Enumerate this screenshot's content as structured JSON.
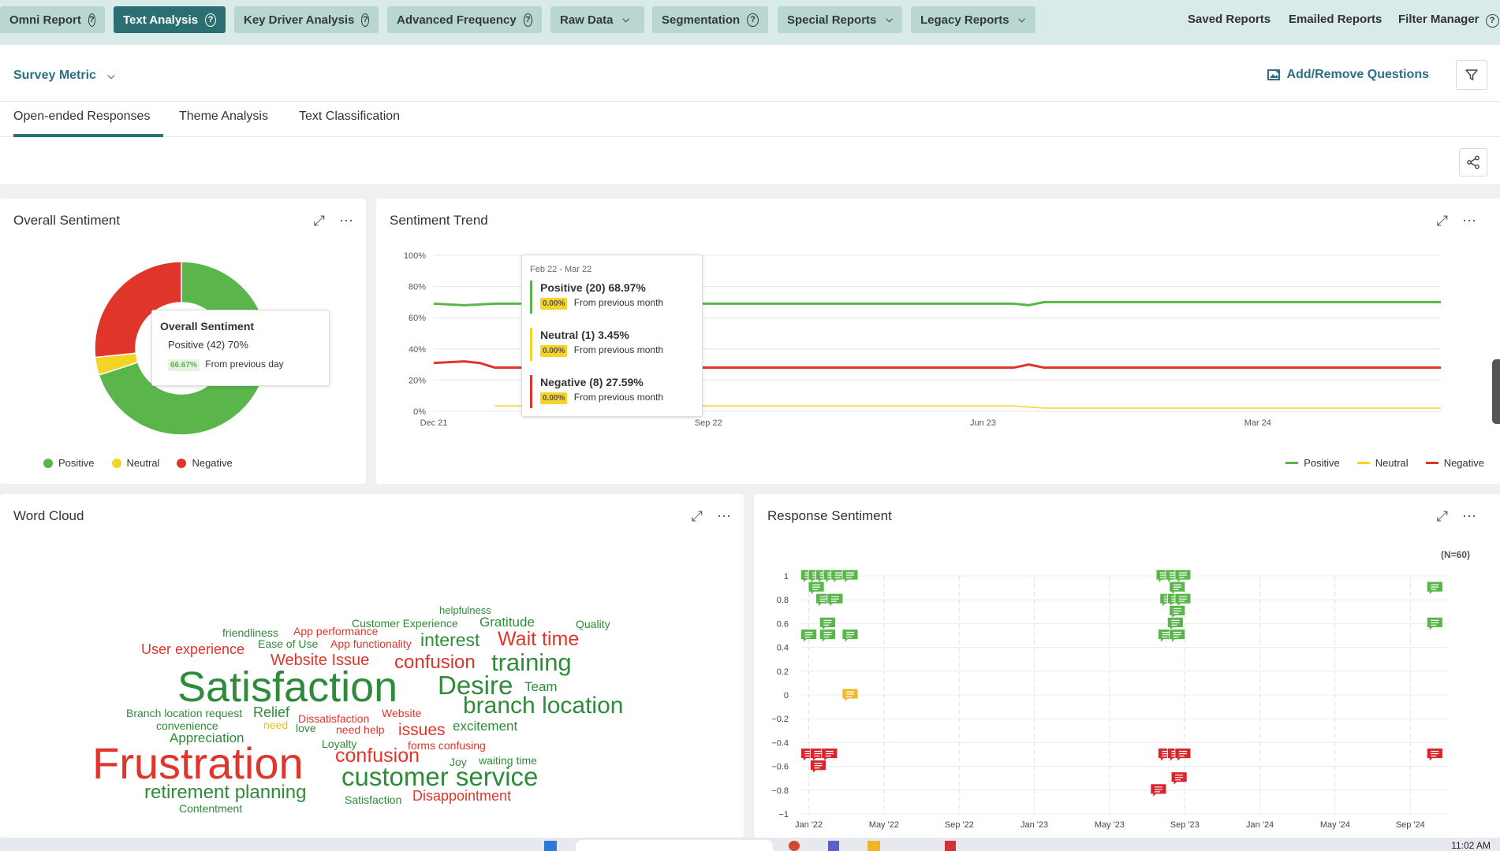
{
  "nav": {
    "tabs": [
      {
        "label": "Omni Report",
        "suffix": "help"
      },
      {
        "label": "Text Analysis",
        "suffix": "help",
        "active": true
      },
      {
        "label": "Key Driver Analysis",
        "suffix": "help"
      },
      {
        "label": "Advanced Frequency",
        "suffix": "help"
      },
      {
        "label": "Raw Data",
        "suffix": "chevron"
      },
      {
        "label": "Segmentation",
        "suffix": "help"
      },
      {
        "label": "Special Reports",
        "suffix": "chevron"
      },
      {
        "label": "Legacy Reports",
        "suffix": "chevron"
      }
    ],
    "links": [
      "Saved Reports",
      "Emailed Reports",
      "Filter Manager"
    ]
  },
  "header": {
    "survey_metric": "Survey Metric",
    "add_remove_questions": "Add/Remove Questions"
  },
  "subtabs": [
    "Open-ended Responses",
    "Theme Analysis",
    "Text Classification"
  ],
  "colors": {
    "positive": "#5ab54b",
    "neutral": "#f5d327",
    "negative": "#e0352b",
    "accent": "#2b6f73",
    "link": "#2e6f86"
  },
  "overall": {
    "title": "Overall Sentiment",
    "tooltip": {
      "title": "Overall Sentiment",
      "line": "Positive (42) 70%",
      "badge": "66.67%",
      "note": "From previous day"
    },
    "legend": [
      "Positive",
      "Neutral",
      "Negative"
    ],
    "chart_data": {
      "type": "pie",
      "title": "Overall Sentiment",
      "categories": [
        "Positive",
        "Neutral",
        "Negative"
      ],
      "values": [
        70,
        3.33,
        26.67
      ]
    }
  },
  "trend": {
    "title": "Sentiment Trend",
    "tooltip": {
      "period": "Feb 22 - Mar 22",
      "rows": [
        {
          "label": "Positive (20) 68.97%",
          "badge": "0.00%",
          "note": "From previous month",
          "color": "#5ab54b"
        },
        {
          "label": "Neutral (1) 3.45%",
          "badge": "0.00%",
          "note": "From previous month",
          "color": "#f5d327"
        },
        {
          "label": "Negative (8) 27.59%",
          "badge": "0.00%",
          "note": "From previous month",
          "color": "#e0352b"
        }
      ]
    },
    "legend": [
      "Positive",
      "Neutral",
      "Negative"
    ],
    "chart_data": {
      "type": "line",
      "title": "Sentiment Trend",
      "y_ticks": [
        "0%",
        "20%",
        "40%",
        "60%",
        "80%",
        "100%"
      ],
      "ylim": [
        0,
        100
      ],
      "x_tick_labels": [
        "Dec 21",
        "Sep 22",
        "Jun 23",
        "Mar 24"
      ],
      "x_tick_positions": [
        0,
        9,
        18,
        27
      ],
      "xlim": [
        0,
        33
      ],
      "series": [
        {
          "name": "Positive",
          "color": "#5ab54b",
          "x": [
            0,
            1,
            2,
            3,
            4,
            5,
            19,
            19.5,
            20,
            33
          ],
          "y": [
            69,
            68,
            69,
            69,
            69,
            69,
            69,
            68,
            70,
            70
          ]
        },
        {
          "name": "Neutral",
          "color": "#f5d327",
          "x": [
            2,
            3,
            19,
            20,
            33
          ],
          "y": [
            3.5,
            3.5,
            3.5,
            2,
            2
          ]
        },
        {
          "name": "Negative",
          "color": "#e0352b",
          "x": [
            0,
            1,
            1.5,
            2,
            3,
            19,
            19.5,
            20,
            33
          ],
          "y": [
            31,
            32,
            31,
            28,
            28,
            28,
            30,
            28,
            28
          ]
        }
      ]
    }
  },
  "wordcloud": {
    "title": "Word Cloud",
    "words": [
      {
        "text": "helpfulness",
        "sentiment": "positive"
      },
      {
        "text": "Customer Experience",
        "sentiment": "positive"
      },
      {
        "text": "Gratitude",
        "sentiment": "positive"
      },
      {
        "text": "Quality",
        "sentiment": "positive"
      },
      {
        "text": "friendliness",
        "sentiment": "positive"
      },
      {
        "text": "App performance",
        "sentiment": "negative"
      },
      {
        "text": "interest",
        "sentiment": "positive"
      },
      {
        "text": "Wait time",
        "sentiment": "negative"
      },
      {
        "text": "Ease of Use",
        "sentiment": "positive"
      },
      {
        "text": "App functionality",
        "sentiment": "negative"
      },
      {
        "text": "User experience",
        "sentiment": "negative"
      },
      {
        "text": "Website Issue",
        "sentiment": "negative"
      },
      {
        "text": "confusion",
        "sentiment": "negative"
      },
      {
        "text": "training",
        "sentiment": "positive"
      },
      {
        "text": "Satisfaction",
        "sentiment": "positive"
      },
      {
        "text": "Desire",
        "sentiment": "positive"
      },
      {
        "text": "Team",
        "sentiment": "positive"
      },
      {
        "text": "branch location",
        "sentiment": "positive"
      },
      {
        "text": "Branch location request",
        "sentiment": "positive"
      },
      {
        "text": "Relief",
        "sentiment": "positive"
      },
      {
        "text": "Dissatisfaction",
        "sentiment": "negative"
      },
      {
        "text": "Website",
        "sentiment": "negative"
      },
      {
        "text": "convenience",
        "sentiment": "positive"
      },
      {
        "text": "need",
        "sentiment": "neutral"
      },
      {
        "text": "love",
        "sentiment": "positive"
      },
      {
        "text": "need help",
        "sentiment": "negative"
      },
      {
        "text": "issues",
        "sentiment": "negative"
      },
      {
        "text": "excitement",
        "sentiment": "positive"
      },
      {
        "text": "Appreciation",
        "sentiment": "positive"
      },
      {
        "text": "Loyalty",
        "sentiment": "positive"
      },
      {
        "text": "forms confusing",
        "sentiment": "negative"
      },
      {
        "text": "Frustration",
        "sentiment": "negative"
      },
      {
        "text": "confusion",
        "sentiment": "negative"
      },
      {
        "text": "Joy",
        "sentiment": "positive"
      },
      {
        "text": "waiting time",
        "sentiment": "positive"
      },
      {
        "text": "customer service",
        "sentiment": "positive"
      },
      {
        "text": "retirement planning",
        "sentiment": "positive"
      },
      {
        "text": "Disappointment",
        "sentiment": "negative"
      },
      {
        "text": "Satisfaction",
        "sentiment": "positive"
      },
      {
        "text": "Contentment",
        "sentiment": "positive"
      }
    ]
  },
  "response": {
    "title": "Response Sentiment",
    "n_label": "(N=60)",
    "chart_data": {
      "type": "scatter",
      "title": "Response Sentiment",
      "y_ticks": [
        "1",
        "0.8",
        "0.6",
        "0.4",
        "0.2",
        "0",
        "−0.2",
        "−0.4",
        "−0.6",
        "−0.8",
        "−1"
      ],
      "ylim": [
        -1,
        1
      ],
      "x_tick_labels": [
        "Jan '22",
        "May '22",
        "Sep '22",
        "Jan '23",
        "May '23",
        "Sep '23",
        "Jan '24",
        "May '24",
        "Sep '24"
      ],
      "x_tick_positions": [
        0,
        4,
        8,
        12,
        16,
        20,
        24,
        28,
        32
      ],
      "xlim": [
        -0.4,
        34
      ],
      "points": [
        {
          "x": 0,
          "y": 1
        },
        {
          "x": 0.4,
          "y": 1
        },
        {
          "x": 0.8,
          "y": 1
        },
        {
          "x": 1.2,
          "y": 1
        },
        {
          "x": 1.6,
          "y": 1
        },
        {
          "x": 2.2,
          "y": 1
        },
        {
          "x": 0.4,
          "y": 0.9
        },
        {
          "x": 0.8,
          "y": 0.8
        },
        {
          "x": 1.4,
          "y": 0.8
        },
        {
          "x": 1,
          "y": 0.6
        },
        {
          "x": 0,
          "y": 0.5
        },
        {
          "x": 1,
          "y": 0.5
        },
        {
          "x": 2.2,
          "y": 0.5
        },
        {
          "x": 2.2,
          "y": 0
        },
        {
          "x": 0,
          "y": -0.5
        },
        {
          "x": 0.5,
          "y": -0.5
        },
        {
          "x": 1.1,
          "y": -0.5
        },
        {
          "x": 0.5,
          "y": -0.6
        },
        {
          "x": 18.9,
          "y": 1
        },
        {
          "x": 19.4,
          "y": 1
        },
        {
          "x": 19.9,
          "y": 1
        },
        {
          "x": 19.6,
          "y": 0.9
        },
        {
          "x": 19.1,
          "y": 0.8
        },
        {
          "x": 19.5,
          "y": 0.8
        },
        {
          "x": 19.9,
          "y": 0.8
        },
        {
          "x": 19.6,
          "y": 0.7
        },
        {
          "x": 19.5,
          "y": 0.6
        },
        {
          "x": 19,
          "y": 0.5
        },
        {
          "x": 19.6,
          "y": 0.5
        },
        {
          "x": 19,
          "y": -0.5
        },
        {
          "x": 19.5,
          "y": -0.5
        },
        {
          "x": 19.9,
          "y": -0.5
        },
        {
          "x": 19.7,
          "y": -0.7
        },
        {
          "x": 18.6,
          "y": -0.8
        },
        {
          "x": 33.3,
          "y": 0.9
        },
        {
          "x": 33.3,
          "y": 0.6
        },
        {
          "x": 33.3,
          "y": -0.5
        }
      ]
    }
  },
  "taskbar": {
    "time": "11:02 AM"
  }
}
